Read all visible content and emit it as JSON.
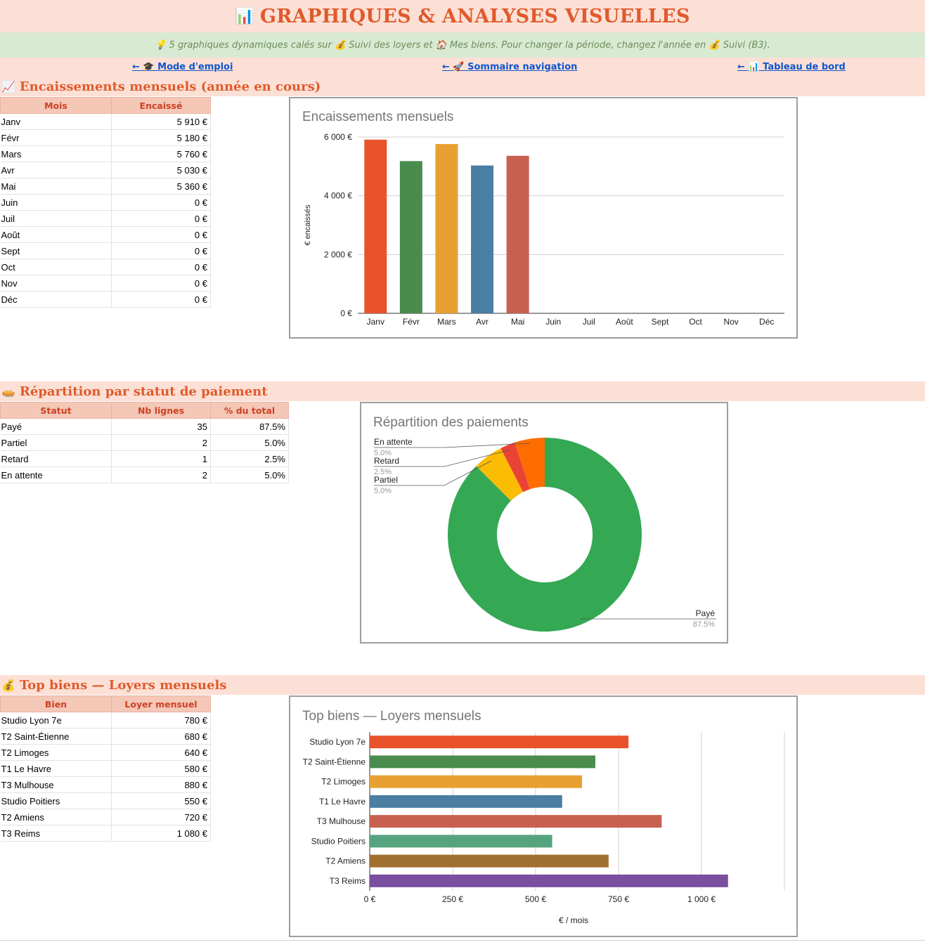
{
  "page": {
    "title_icon": "📊",
    "title": "GRAPHIQUES & ANALYSES VISUELLES",
    "subtitle": "💡 5 graphiques dynamiques calés sur 💰 Suivi des loyers et 🏠 Mes biens. Pour changer la période, changez l'année en 💰 Suivi (B3).",
    "nav": {
      "mode_emploi": "← 🎓 Mode d'emploi",
      "sommaire": "← 🚀 Sommaire navigation",
      "tableau": "← 📊 Tableau de bord"
    }
  },
  "colors": {
    "accent": "#e05a2b",
    "header_bg": "#fce0d6",
    "th_bg": "#f4c7b6",
    "th_text": "#cc4125",
    "link": "#1155cc",
    "series": [
      "#e8532b",
      "#4a8c4e",
      "#e8a032",
      "#4a7ea3",
      "#c86050",
      "#55a37f",
      "#a07030",
      "#7a4fa0"
    ],
    "pie": {
      "Payé": "#34a853",
      "Partiel": "#fbbc04",
      "Retard": "#ea4335",
      "En attente": "#ff6d01"
    }
  },
  "section1": {
    "icon": "📈",
    "title": "Encaissements mensuels (année en cours)",
    "headers": [
      "Mois",
      "Encaissé"
    ],
    "rows": [
      [
        "Janv",
        "5 910 €"
      ],
      [
        "Févr",
        "5 180 €"
      ],
      [
        "Mars",
        "5 760 €"
      ],
      [
        "Avr",
        "5 030 €"
      ],
      [
        "Mai",
        "5 360 €"
      ],
      [
        "Juin",
        "0 €"
      ],
      [
        "Juil",
        "0 €"
      ],
      [
        "Août",
        "0 €"
      ],
      [
        "Sept",
        "0 €"
      ],
      [
        "Oct",
        "0 €"
      ],
      [
        "Nov",
        "0 €"
      ],
      [
        "Déc",
        "0 €"
      ]
    ]
  },
  "section2": {
    "icon": "🥧",
    "title": "Répartition par statut de paiement",
    "headers": [
      "Statut",
      "Nb lignes",
      "% du total"
    ],
    "rows": [
      [
        "Payé",
        "35",
        "87.5%"
      ],
      [
        "Partiel",
        "2",
        "5.0%"
      ],
      [
        "Retard",
        "1",
        "2.5%"
      ],
      [
        "En attente",
        "2",
        "5.0%"
      ]
    ]
  },
  "section3": {
    "icon": "💰",
    "title": "Top biens — Loyers mensuels",
    "headers": [
      "Bien",
      "Loyer mensuel"
    ],
    "rows": [
      [
        "Studio Lyon 7e",
        "780 €"
      ],
      [
        "T2 Saint-Étienne",
        "680 €"
      ],
      [
        "T2 Limoges",
        "640 €"
      ],
      [
        "T1 Le Havre",
        "580 €"
      ],
      [
        "T3 Mulhouse",
        "880 €"
      ],
      [
        "Studio Poitiers",
        "550 €"
      ],
      [
        "T2 Amiens",
        "720 €"
      ],
      [
        "T3 Reims",
        "1 080 €"
      ]
    ]
  },
  "chart_data": [
    {
      "type": "bar",
      "title": "Encaissements mensuels",
      "xlabel": "",
      "ylabel": "€ encaissés",
      "categories": [
        "Janv",
        "Févr",
        "Mars",
        "Avr",
        "Mai",
        "Juin",
        "Juil",
        "Août",
        "Sept",
        "Oct",
        "Nov",
        "Déc"
      ],
      "values": [
        5910,
        5180,
        5760,
        5030,
        5360,
        0,
        0,
        0,
        0,
        0,
        0,
        0
      ],
      "ylim": [
        0,
        6000
      ],
      "yticks": [
        0,
        2000,
        4000,
        6000
      ],
      "ytick_labels": [
        "0 €",
        "2 000 €",
        "4 000 €",
        "6 000 €"
      ],
      "grid": true
    },
    {
      "type": "pie",
      "title": "Répartition des paiements",
      "donut": true,
      "labels": [
        "Payé",
        "Partiel",
        "Retard",
        "En attente"
      ],
      "values": [
        35,
        2,
        1,
        2
      ],
      "percent_labels": [
        "87.5%",
        "5.0%",
        "2.5%",
        "5.0%"
      ]
    },
    {
      "type": "bar",
      "orientation": "horizontal",
      "title": "Top biens — Loyers mensuels",
      "xlabel": "€ / mois",
      "ylabel": "",
      "categories": [
        "Studio Lyon 7e",
        "T2 Saint-Étienne",
        "T2 Limoges",
        "T1 Le Havre",
        "T3 Mulhouse",
        "Studio Poitiers",
        "T2 Amiens",
        "T3 Reims"
      ],
      "values": [
        780,
        680,
        640,
        580,
        880,
        550,
        720,
        1080
      ],
      "xlim": [
        0,
        1250
      ],
      "xticks": [
        0,
        250,
        500,
        750,
        1000
      ],
      "xtick_labels": [
        "0 €",
        "250 €",
        "500 €",
        "750 €",
        "1 000 €"
      ],
      "grid": true
    }
  ]
}
